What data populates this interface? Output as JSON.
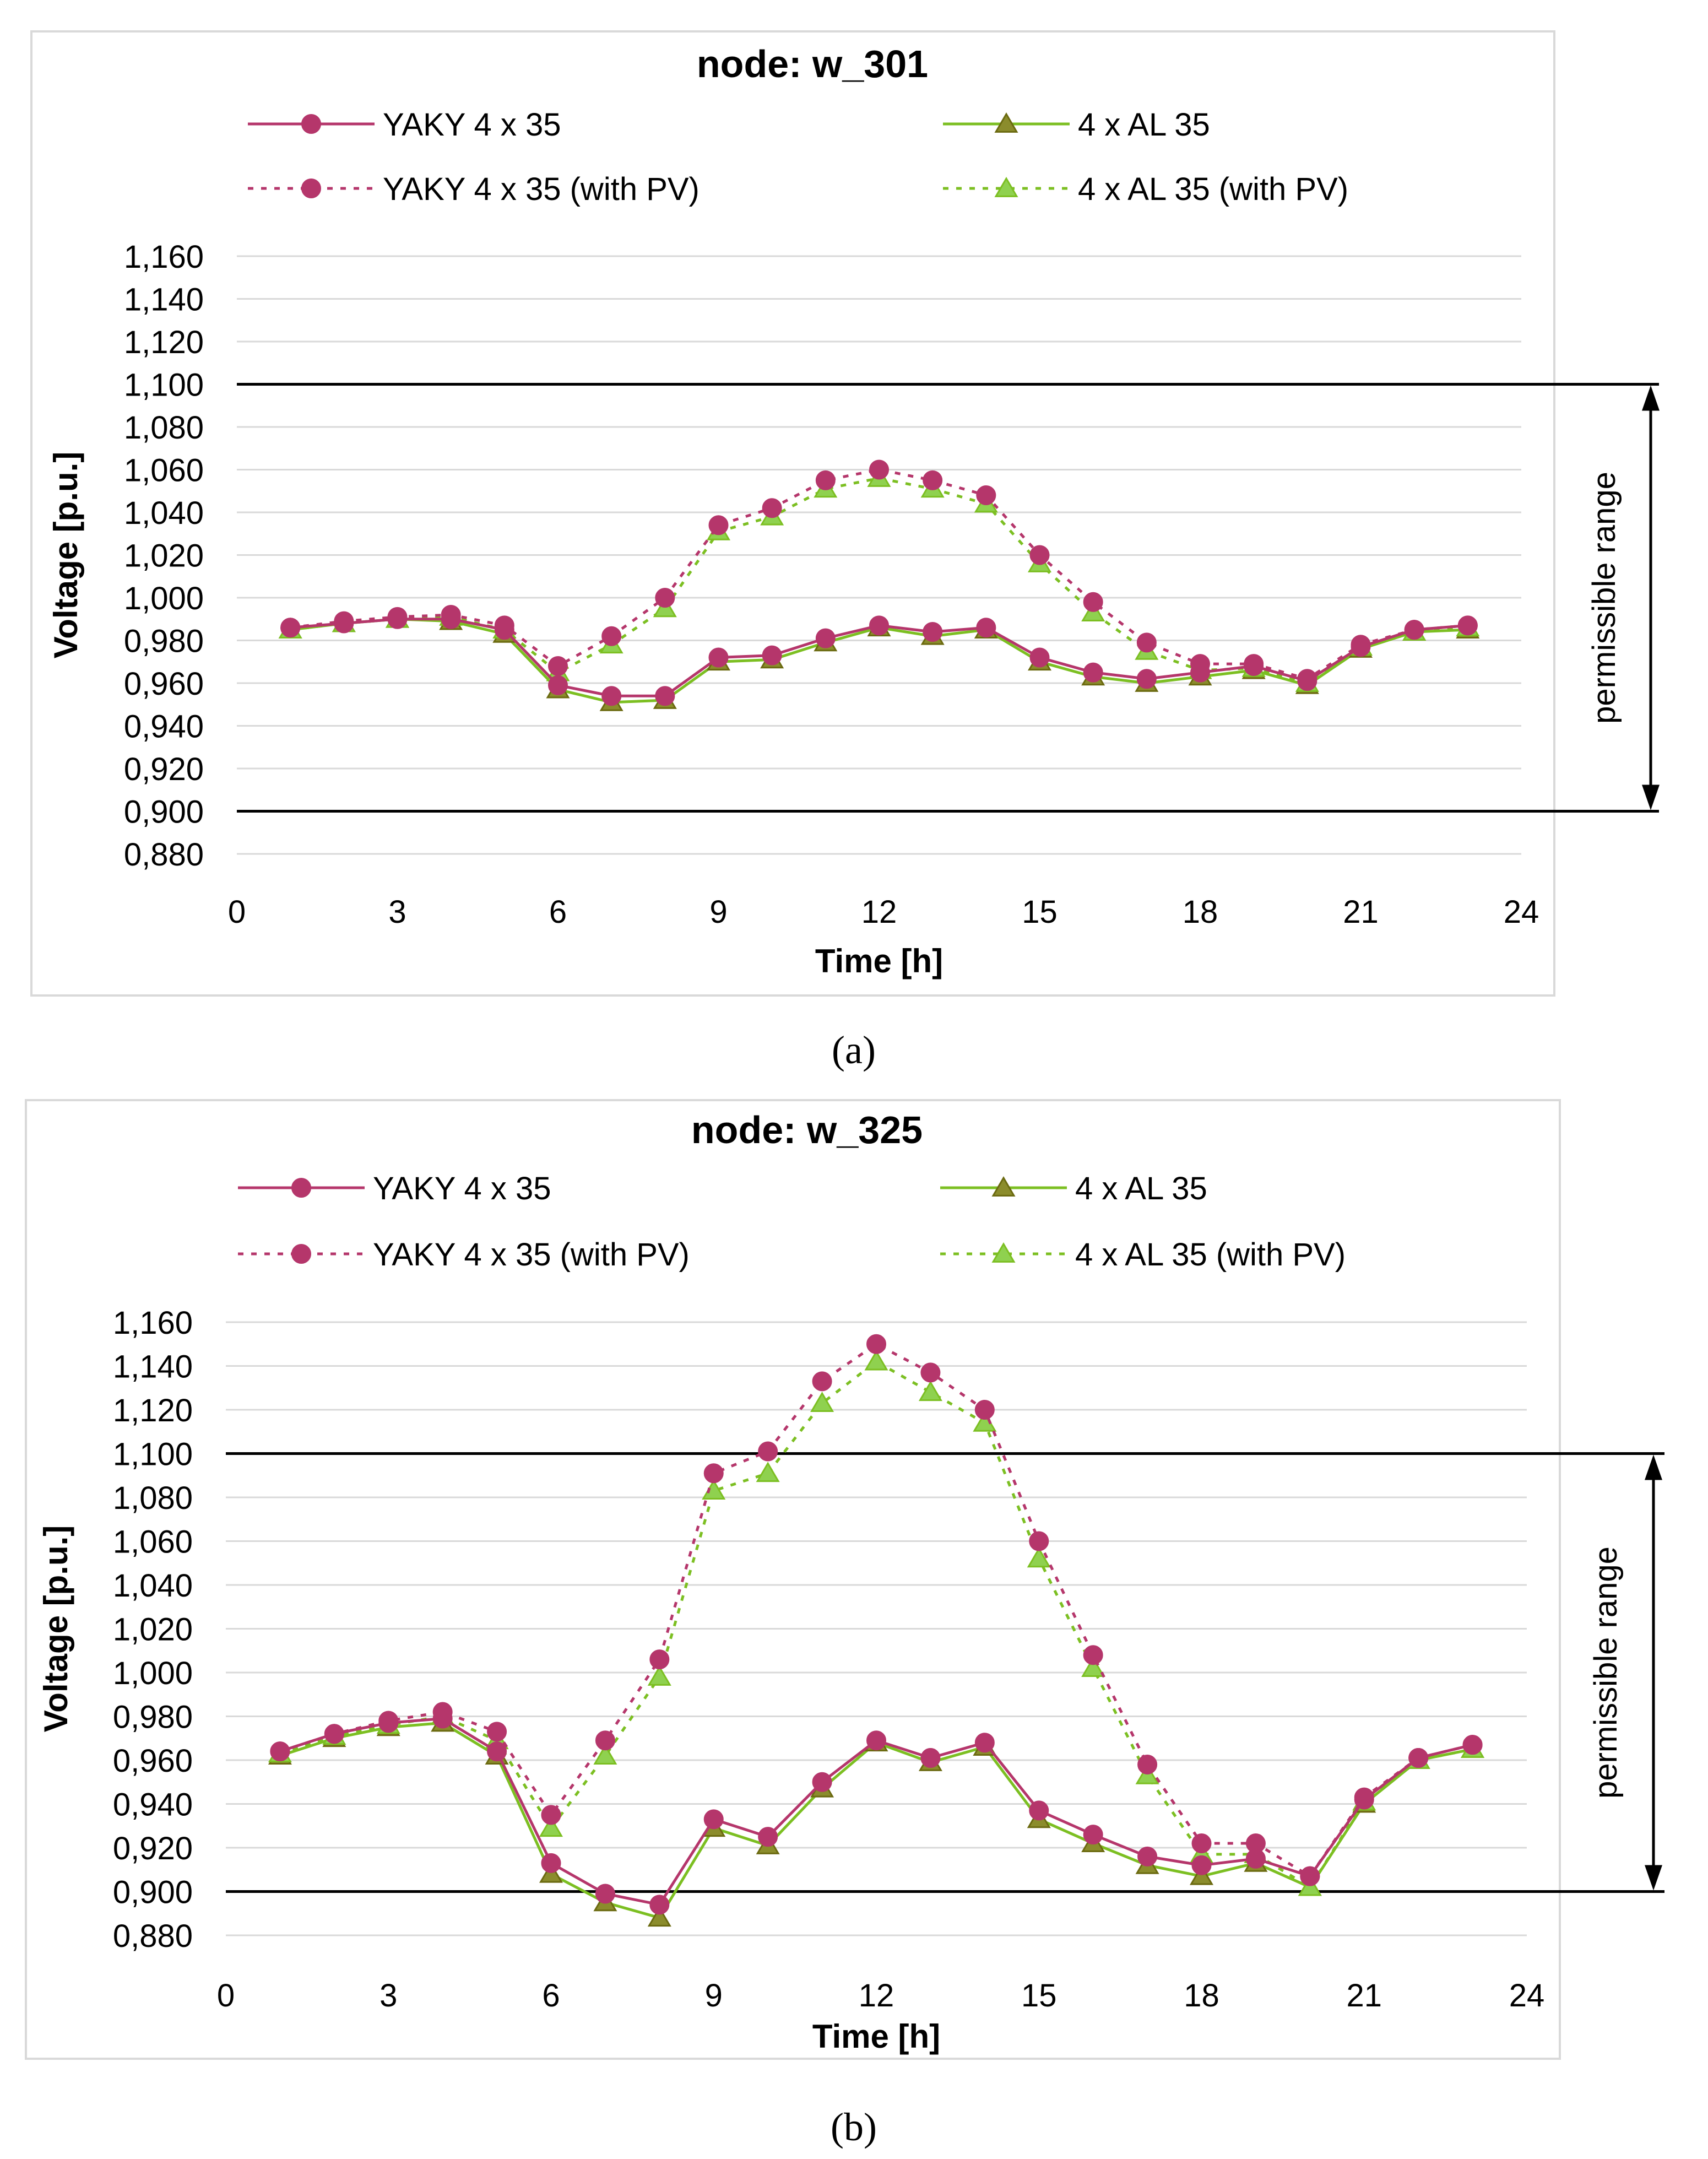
{
  "colors": {
    "yaky": "#B5366B",
    "al_line": "#7CBF22",
    "al_marker_fill": "#8B8C2C",
    "al_marker_stroke": "#6B6A10",
    "al_pv_marker": "#8FD14F",
    "grid": "#D9D9D9",
    "limit": "#000000",
    "frame": "#D9D9D9"
  },
  "chart_data": [
    {
      "type": "line",
      "title": "node: w_301",
      "caption": "(a)",
      "caption_letter": "a",
      "xlabel": "Time [h]",
      "ylabel": "Voltage [p.u.]",
      "xlim": [
        0,
        24
      ],
      "ylim": [
        0.88,
        1.16
      ],
      "x_ticks": [
        0,
        3,
        6,
        9,
        12,
        15,
        18,
        21,
        24
      ],
      "y_ticks": [
        "0,880",
        "0,900",
        "0,920",
        "0,940",
        "0,960",
        "0,980",
        "1,000",
        "1,020",
        "1,040",
        "1,060",
        "1,080",
        "1,100",
        "1,120",
        "1,140",
        "1,160"
      ],
      "permissible_range": {
        "low": 0.9,
        "high": 1.1,
        "label": "permissible range"
      },
      "legend": [
        "YAKY 4 x 35",
        "4 x AL 35",
        "YAKY 4 x 35 (with PV)",
        "4 x AL 35 (with PV)"
      ],
      "x": [
        1,
        2,
        3,
        4,
        5,
        6,
        7,
        8,
        9,
        10,
        11,
        12,
        13,
        14,
        15,
        16,
        17,
        18,
        19,
        20,
        21,
        22,
        23
      ],
      "series": [
        {
          "name": "YAKY 4 x 35",
          "values": [
            0.986,
            0.988,
            0.99,
            0.99,
            0.985,
            0.959,
            0.954,
            0.954,
            0.972,
            0.973,
            0.981,
            0.987,
            0.984,
            0.986,
            0.972,
            0.965,
            0.962,
            0.965,
            0.968,
            0.961,
            0.977,
            0.985,
            0.987
          ]
        },
        {
          "name": "4 x AL 35",
          "values": [
            0.985,
            0.988,
            0.99,
            0.989,
            0.983,
            0.957,
            0.951,
            0.952,
            0.97,
            0.971,
            0.979,
            0.986,
            0.982,
            0.985,
            0.97,
            0.963,
            0.96,
            0.963,
            0.966,
            0.959,
            0.976,
            0.984,
            0.985
          ]
        },
        {
          "name": "YAKY 4 x 35 (with PV)",
          "values": [
            0.986,
            0.989,
            0.991,
            0.992,
            0.987,
            0.968,
            0.982,
            1.0,
            1.034,
            1.042,
            1.055,
            1.06,
            1.055,
            1.048,
            1.02,
            0.998,
            0.979,
            0.969,
            0.969,
            0.962,
            0.978,
            0.985,
            0.987
          ]
        },
        {
          "name": "4 x AL 35 (with PV)",
          "values": [
            0.985,
            0.988,
            0.99,
            0.991,
            0.985,
            0.965,
            0.978,
            0.995,
            1.031,
            1.038,
            1.051,
            1.056,
            1.051,
            1.044,
            1.016,
            0.993,
            0.975,
            0.966,
            0.967,
            0.96,
            0.977,
            0.984,
            0.986
          ]
        }
      ]
    },
    {
      "type": "line",
      "title": "node: w_325",
      "caption": "(b)",
      "caption_letter": "b",
      "xlabel": "Time [h]",
      "ylabel": "Voltage [p.u.]",
      "xlim": [
        0,
        24
      ],
      "ylim": [
        0.88,
        1.16
      ],
      "x_ticks": [
        0,
        3,
        6,
        9,
        12,
        15,
        18,
        21,
        24
      ],
      "y_ticks": [
        "0,880",
        "0,900",
        "0,920",
        "0,940",
        "0,960",
        "0,980",
        "1,000",
        "1,020",
        "1,040",
        "1,060",
        "1,080",
        "1,100",
        "1,120",
        "1,140",
        "1,160"
      ],
      "permissible_range": {
        "low": 0.9,
        "high": 1.1,
        "label": "permissible range"
      },
      "legend": [
        "YAKY 4 x 35",
        "4 x AL 35",
        "YAKY 4 x 35 (with PV)",
        "4 x AL 35 (with PV)"
      ],
      "x": [
        1,
        2,
        3,
        4,
        5,
        6,
        7,
        8,
        9,
        10,
        11,
        12,
        13,
        14,
        15,
        16,
        17,
        18,
        19,
        20,
        21,
        22,
        23
      ],
      "series": [
        {
          "name": "YAKY 4 x 35",
          "values": [
            0.964,
            0.972,
            0.977,
            0.979,
            0.964,
            0.913,
            0.899,
            0.894,
            0.933,
            0.925,
            0.95,
            0.969,
            0.961,
            0.968,
            0.937,
            0.926,
            0.916,
            0.912,
            0.915,
            0.907,
            0.942,
            0.961,
            0.967
          ]
        },
        {
          "name": "4 x AL 35",
          "values": [
            0.962,
            0.97,
            0.975,
            0.977,
            0.962,
            0.908,
            0.895,
            0.888,
            0.929,
            0.921,
            0.947,
            0.968,
            0.959,
            0.966,
            0.933,
            0.922,
            0.912,
            0.907,
            0.913,
            0.902,
            0.94,
            0.96,
            0.965
          ]
        },
        {
          "name": "YAKY 4 x 35 (with PV)",
          "values": [
            0.964,
            0.972,
            0.978,
            0.982,
            0.973,
            0.935,
            0.969,
            1.006,
            1.091,
            1.101,
            1.133,
            1.15,
            1.137,
            1.12,
            1.06,
            1.008,
            0.958,
            0.922,
            0.922,
            0.907,
            0.943,
            0.961,
            0.967
          ]
        },
        {
          "name": "4 x AL 35 (with PV)",
          "values": [
            0.963,
            0.971,
            0.976,
            0.98,
            0.969,
            0.929,
            0.962,
            0.998,
            1.083,
            1.091,
            1.123,
            1.142,
            1.128,
            1.114,
            1.052,
            1.002,
            0.953,
            0.917,
            0.917,
            0.902,
            0.941,
            0.96,
            0.965
          ]
        }
      ]
    }
  ]
}
